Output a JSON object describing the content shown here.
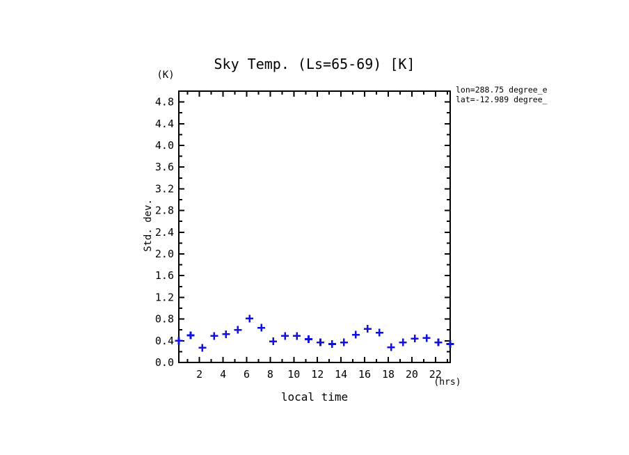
{
  "window": {
    "background": "#ffffff",
    "axis_color": "#000000"
  },
  "chart_data": {
    "type": "scatter",
    "title": "Sky Temp. (Ls=65-69) [K]",
    "ylabel": "Std. dev.",
    "y_unit": "(K)",
    "xlabel": "local time",
    "x_unit": "(hrs)",
    "annotation": {
      "line1": "lon=288.75 degree_e",
      "line2": "lat=-12.989 degree_"
    },
    "legend_position": "none",
    "grid": false,
    "marker": {
      "shape": "plus",
      "color": "#1111dd"
    },
    "xlim": [
      0.25,
      23.25
    ],
    "ylim": [
      0.0,
      5.0
    ],
    "x_major_ticks": [
      2,
      4,
      6,
      8,
      10,
      12,
      14,
      16,
      18,
      20,
      22
    ],
    "x_minor_step": 1,
    "y_major_ticks": [
      0.0,
      0.4,
      0.8,
      1.2,
      1.6,
      2.0,
      2.4,
      2.8,
      3.2,
      3.6,
      4.0,
      4.4,
      4.8
    ],
    "y_minor_step": 0.2,
    "x": [
      0.25,
      1.25,
      2.25,
      3.25,
      4.25,
      5.25,
      6.25,
      7.25,
      8.25,
      9.25,
      10.25,
      11.25,
      12.25,
      13.25,
      14.25,
      15.25,
      16.25,
      17.25,
      18.25,
      19.25,
      20.25,
      21.25,
      22.25,
      23.25
    ],
    "values": [
      0.4,
      0.5,
      0.27,
      0.49,
      0.52,
      0.6,
      0.81,
      0.64,
      0.39,
      0.49,
      0.49,
      0.43,
      0.37,
      0.34,
      0.37,
      0.51,
      0.62,
      0.55,
      0.28,
      0.37,
      0.44,
      0.45,
      0.37,
      0.34
    ]
  }
}
